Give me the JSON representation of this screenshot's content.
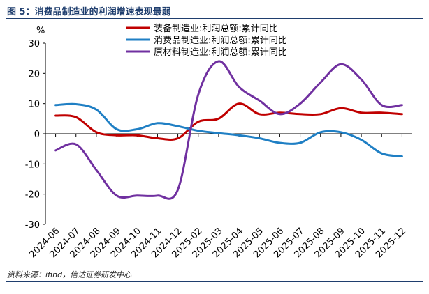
{
  "figure": {
    "title": "图 5：消费品制造业的利润增速表现最弱",
    "source": "资料来源：ifind，信达证券研发中心"
  },
  "chart_data": {
    "type": "line",
    "ylabel": "%",
    "xlabel": "",
    "ylim": [
      -30,
      30
    ],
    "yticks": [
      30,
      20,
      10,
      0,
      -10,
      -20,
      -30
    ],
    "categories": [
      "2024-06",
      "2024-07",
      "2024-08",
      "2024-09",
      "2024-10",
      "2024-11",
      "2024-12",
      "2025-02",
      "2025-03",
      "2025-04",
      "2025-05",
      "2025-06",
      "2025-07",
      "2025-08",
      "2025-09",
      "2025-10",
      "2025-11",
      "2025-12"
    ],
    "legend_position": "top-right",
    "grid": false,
    "series": [
      {
        "name": "装备制造业:利润总额:累计同比",
        "color": "#c00000",
        "values": [
          6.0,
          5.5,
          0.5,
          -0.5,
          -0.5,
          -1.5,
          -1.5,
          4.0,
          5.0,
          10.0,
          6.5,
          7.0,
          6.5,
          6.5,
          8.5,
          7.0,
          7.0,
          6.5
        ]
      },
      {
        "name": "消费品制造业:利润总额:累计同比",
        "color": "#1f7fc4",
        "values": [
          9.5,
          9.8,
          8.0,
          1.5,
          1.5,
          3.5,
          2.5,
          1.0,
          0.2,
          -0.5,
          -1.5,
          -3.0,
          -3.0,
          0.5,
          0.5,
          -2.0,
          -6.5,
          -7.5
        ]
      },
      {
        "name": "原材料制造业:利润总额:累计同比",
        "color": "#7030a0",
        "values": [
          -5.5,
          -3.5,
          -12.0,
          -20.5,
          -20.5,
          -20.5,
          -18.5,
          13.0,
          24.0,
          15.5,
          11.0,
          6.5,
          10.0,
          17.0,
          23.0,
          18.0,
          9.5,
          9.5
        ]
      }
    ]
  }
}
